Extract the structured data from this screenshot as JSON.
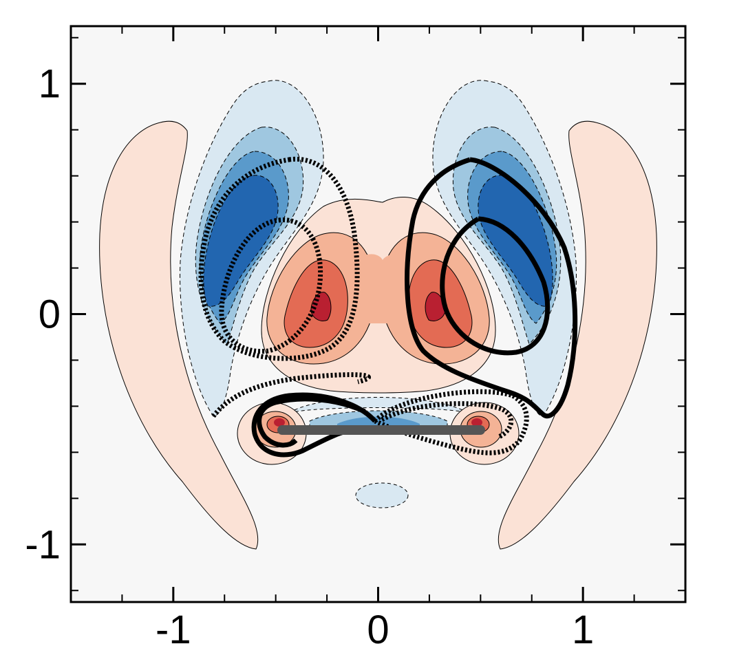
{
  "chart_data": {
    "type": "heatmap",
    "title": "",
    "xlabel": "",
    "ylabel": "",
    "xlim": [
      -1.5,
      1.5
    ],
    "ylim": [
      -1.25,
      1.25
    ],
    "x_ticks": [
      {
        "value": -1,
        "label": "-1"
      },
      {
        "value": 0,
        "label": "0"
      },
      {
        "value": 1,
        "label": "1"
      }
    ],
    "y_ticks": [
      {
        "value": 1,
        "label": "1"
      },
      {
        "value": 0,
        "label": "0"
      },
      {
        "value": -1,
        "label": "-1"
      }
    ],
    "x_minor_ticks": [
      -1.5,
      -1.25,
      -0.75,
      -0.5,
      -0.25,
      0.25,
      0.5,
      0.75,
      1.25
    ],
    "y_minor_ticks": [
      -1.2,
      -0.8,
      -0.6,
      -0.4,
      -0.2,
      0.2,
      0.4,
      0.6,
      0.8,
      1.2
    ],
    "grid": false,
    "colors": {
      "background": "#f7f7f7",
      "positive_levels": [
        "#fbe2d6",
        "#f4b396",
        "#e36b54",
        "#b92031"
      ],
      "negative_levels": [
        "#d9e8f2",
        "#9fc7e0",
        "#5a9acb",
        "#2266b0"
      ],
      "plate": "#555555"
    },
    "plate": {
      "x": [
        -0.45,
        0.45
      ],
      "y": -0.5
    },
    "positive_regions": [
      {
        "level": 0,
        "shape": "crescent",
        "cx": -1.05,
        "cy": 0.1,
        "note_side": "left"
      },
      {
        "level": 0,
        "shape": "crescent",
        "cx": 1.05,
        "cy": 0.1,
        "note_side": "right"
      },
      {
        "level": 0,
        "shape": "central-lobe",
        "cx": 0.0,
        "cy": 0.05
      },
      {
        "level": 1,
        "shape": "lobe",
        "cx": -0.3,
        "cy": 0.0
      },
      {
        "level": 1,
        "shape": "lobe",
        "cx": 0.3,
        "cy": 0.0
      },
      {
        "level": 2,
        "shape": "lobe",
        "cx": -0.3,
        "cy": -0.05
      },
      {
        "level": 2,
        "shape": "lobe",
        "cx": 0.3,
        "cy": -0.05
      },
      {
        "level": 3,
        "shape": "core",
        "cx": -0.29,
        "cy": 0.0
      },
      {
        "level": 3,
        "shape": "core",
        "cx": 0.29,
        "cy": 0.0
      }
    ],
    "negative_regions": [
      {
        "level": 0,
        "shape": "band",
        "cx": -0.55,
        "cy": 0.35
      },
      {
        "level": 0,
        "shape": "band",
        "cx": 0.55,
        "cy": 0.35
      },
      {
        "level": 3,
        "shape": "core",
        "cx": -0.63,
        "cy": 0.3
      },
      {
        "level": 3,
        "shape": "core",
        "cx": 0.65,
        "cy": 0.3
      }
    ],
    "streamlines": [
      {
        "style": "dashed",
        "side": "left"
      },
      {
        "style": "solid",
        "side": "right"
      }
    ]
  }
}
